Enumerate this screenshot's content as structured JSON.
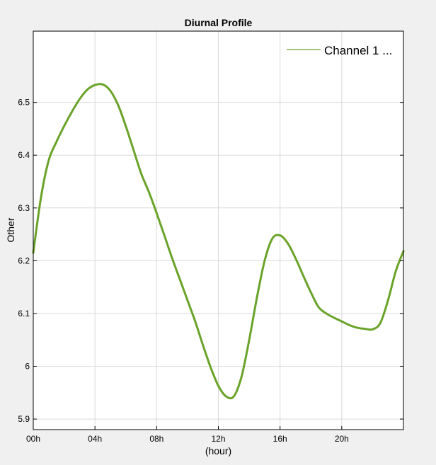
{
  "chart_data": {
    "type": "line",
    "title": "Diurnal Profile",
    "xlabel": "(hour)",
    "ylabel": "Other",
    "xlim": [
      0,
      24
    ],
    "ylim": [
      5.88,
      6.635
    ],
    "x_ticks": [
      0,
      4,
      8,
      12,
      16,
      20
    ],
    "x_tick_labels": [
      "00h",
      "04h",
      "08h",
      "12h",
      "16h",
      "20h"
    ],
    "y_ticks": [
      5.9,
      6.0,
      6.1,
      6.2,
      6.3,
      6.4,
      6.5
    ],
    "y_tick_labels": [
      "5.9",
      "6",
      "6.1",
      "6.2",
      "6.3",
      "6.4",
      "6.5"
    ],
    "grid": true,
    "legend_position": "top-right",
    "series": [
      {
        "name": "Channel 1 ...",
        "color": "#6aa329",
        "x": [
          0,
          0.5,
          1,
          1.5,
          2,
          2.5,
          3,
          3.5,
          4,
          4.5,
          5,
          5.5,
          6,
          6.5,
          7,
          7.5,
          8,
          8.5,
          9,
          9.5,
          10,
          10.5,
          11,
          11.5,
          12,
          12.5,
          13,
          13.5,
          14,
          14.5,
          15,
          15.5,
          16,
          16.5,
          17,
          17.5,
          18,
          18.5,
          19,
          19.5,
          20,
          20.5,
          21,
          21.5,
          22,
          22.5,
          23,
          23.5,
          24
        ],
        "values": [
          6.215,
          6.32,
          6.39,
          6.425,
          6.455,
          6.482,
          6.506,
          6.524,
          6.533,
          6.534,
          6.522,
          6.495,
          6.455,
          6.41,
          6.365,
          6.33,
          6.29,
          6.248,
          6.205,
          6.165,
          6.125,
          6.085,
          6.04,
          5.998,
          5.963,
          5.943,
          5.943,
          5.98,
          6.05,
          6.13,
          6.2,
          6.242,
          6.248,
          6.233,
          6.205,
          6.172,
          6.14,
          6.112,
          6.1,
          6.092,
          6.085,
          6.078,
          6.073,
          6.071,
          6.07,
          6.082,
          6.125,
          6.18,
          6.218
        ]
      }
    ]
  }
}
